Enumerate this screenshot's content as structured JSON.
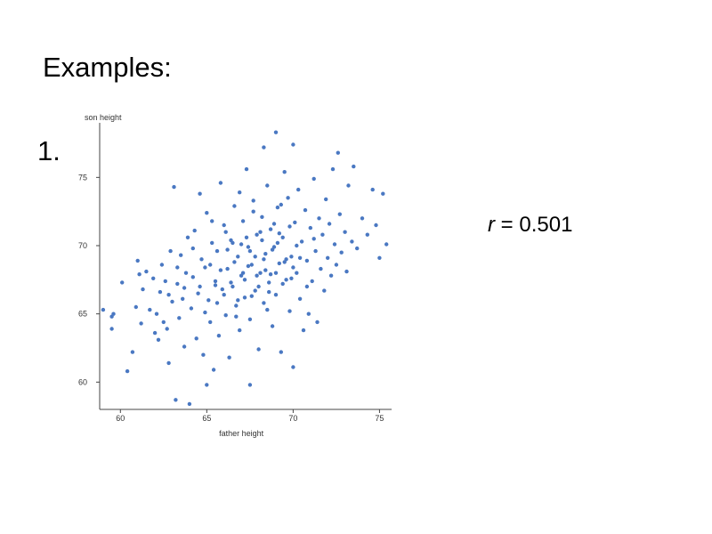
{
  "slide": {
    "title": "Examples:",
    "list_number": "1.",
    "r_symbol": "r",
    "r_rest": " = 0.501"
  },
  "colors": {
    "point": "#4a78c2",
    "axis": "#444444"
  },
  "chart_data": {
    "type": "scatter",
    "xlabel": "father height",
    "ylabel": "son height",
    "xlim": [
      58.8,
      75.7
    ],
    "ylim": [
      58.0,
      79.0
    ],
    "xticks": [
      60,
      65,
      70,
      75
    ],
    "yticks": [
      60,
      65,
      70,
      75
    ],
    "grid": false,
    "legend": "none",
    "points": [
      [
        59.0,
        65.3
      ],
      [
        59.5,
        64.8
      ],
      [
        59.6,
        65.0
      ],
      [
        59.5,
        63.9
      ],
      [
        60.1,
        67.3
      ],
      [
        60.4,
        60.8
      ],
      [
        60.7,
        62.2
      ],
      [
        60.9,
        65.5
      ],
      [
        61.0,
        68.9
      ],
      [
        61.1,
        67.9
      ],
      [
        61.2,
        64.3
      ],
      [
        61.3,
        66.8
      ],
      [
        61.5,
        68.1
      ],
      [
        61.7,
        65.3
      ],
      [
        61.9,
        67.6
      ],
      [
        62.0,
        63.6
      ],
      [
        62.1,
        65.0
      ],
      [
        62.2,
        63.1
      ],
      [
        62.3,
        66.6
      ],
      [
        62.4,
        68.6
      ],
      [
        62.5,
        64.4
      ],
      [
        62.6,
        67.4
      ],
      [
        62.7,
        63.9
      ],
      [
        62.8,
        61.4
      ],
      [
        62.9,
        69.6
      ],
      [
        63.0,
        65.9
      ],
      [
        63.1,
        74.3
      ],
      [
        63.2,
        58.7
      ],
      [
        63.3,
        67.2
      ],
      [
        63.4,
        64.7
      ],
      [
        63.5,
        69.3
      ],
      [
        63.6,
        66.1
      ],
      [
        63.7,
        62.6
      ],
      [
        63.8,
        68.0
      ],
      [
        63.9,
        70.6
      ],
      [
        64.0,
        58.4
      ],
      [
        64.1,
        65.4
      ],
      [
        64.2,
        67.7
      ],
      [
        64.3,
        71.1
      ],
      [
        64.4,
        63.2
      ],
      [
        64.5,
        66.5
      ],
      [
        64.6,
        73.8
      ],
      [
        64.7,
        69.0
      ],
      [
        64.8,
        62.0
      ],
      [
        64.9,
        68.4
      ],
      [
        65.0,
        59.8
      ],
      [
        65.0,
        72.4
      ],
      [
        65.1,
        66.0
      ],
      [
        65.2,
        64.4
      ],
      [
        65.3,
        70.2
      ],
      [
        65.4,
        60.9
      ],
      [
        65.5,
        67.4
      ],
      [
        65.6,
        69.6
      ],
      [
        65.7,
        63.4
      ],
      [
        65.8,
        74.6
      ],
      [
        65.9,
        66.8
      ],
      [
        66.0,
        71.5
      ],
      [
        66.1,
        64.9
      ],
      [
        66.2,
        68.3
      ],
      [
        66.3,
        61.8
      ],
      [
        66.4,
        70.4
      ],
      [
        66.5,
        67.0
      ],
      [
        66.6,
        72.9
      ],
      [
        66.7,
        65.6
      ],
      [
        66.8,
        69.2
      ],
      [
        66.9,
        63.8
      ],
      [
        67.0,
        67.8
      ],
      [
        67.1,
        71.8
      ],
      [
        67.2,
        66.2
      ],
      [
        67.3,
        75.6
      ],
      [
        67.4,
        69.9
      ],
      [
        67.5,
        59.8
      ],
      [
        67.5,
        64.6
      ],
      [
        67.6,
        68.6
      ],
      [
        67.7,
        73.3
      ],
      [
        67.8,
        66.7
      ],
      [
        67.9,
        70.8
      ],
      [
        68.0,
        62.4
      ],
      [
        68.1,
        68.0
      ],
      [
        68.2,
        72.1
      ],
      [
        68.3,
        65.8
      ],
      [
        68.3,
        77.2
      ],
      [
        68.4,
        69.4
      ],
      [
        68.5,
        74.4
      ],
      [
        68.6,
        67.3
      ],
      [
        68.7,
        71.2
      ],
      [
        68.8,
        64.1
      ],
      [
        68.9,
        69.9
      ],
      [
        69.0,
        78.3
      ],
      [
        69.0,
        66.4
      ],
      [
        69.1,
        72.8
      ],
      [
        69.2,
        68.7
      ],
      [
        69.3,
        62.2
      ],
      [
        69.4,
        70.6
      ],
      [
        69.5,
        75.4
      ],
      [
        69.6,
        67.5
      ],
      [
        69.7,
        73.5
      ],
      [
        69.8,
        65.2
      ],
      [
        69.9,
        69.2
      ],
      [
        70.0,
        61.1
      ],
      [
        70.0,
        77.4
      ],
      [
        70.1,
        71.7
      ],
      [
        70.2,
        68.0
      ],
      [
        70.3,
        74.1
      ],
      [
        70.4,
        66.1
      ],
      [
        70.5,
        70.3
      ],
      [
        70.6,
        63.8
      ],
      [
        70.7,
        72.6
      ],
      [
        70.8,
        68.9
      ],
      [
        70.9,
        65.0
      ],
      [
        71.0,
        71.3
      ],
      [
        71.1,
        67.4
      ],
      [
        71.2,
        74.9
      ],
      [
        71.3,
        69.6
      ],
      [
        71.4,
        64.4
      ],
      [
        71.5,
        72.0
      ],
      [
        71.6,
        68.3
      ],
      [
        71.7,
        70.8
      ],
      [
        71.8,
        66.7
      ],
      [
        71.9,
        73.4
      ],
      [
        72.0,
        69.1
      ],
      [
        72.1,
        71.6
      ],
      [
        72.2,
        67.8
      ],
      [
        72.3,
        75.6
      ],
      [
        72.4,
        70.1
      ],
      [
        72.5,
        68.6
      ],
      [
        72.6,
        76.8
      ],
      [
        72.7,
        72.3
      ],
      [
        72.8,
        69.5
      ],
      [
        73.0,
        71.0
      ],
      [
        73.1,
        68.1
      ],
      [
        73.2,
        74.4
      ],
      [
        73.4,
        70.3
      ],
      [
        73.5,
        75.8
      ],
      [
        73.7,
        69.8
      ],
      [
        74.0,
        72.0
      ],
      [
        74.3,
        70.8
      ],
      [
        74.6,
        74.1
      ],
      [
        74.8,
        71.5
      ],
      [
        75.0,
        69.1
      ],
      [
        75.2,
        73.8
      ],
      [
        75.4,
        70.1
      ],
      [
        65.5,
        67.1
      ],
      [
        65.8,
        68.2
      ],
      [
        66.0,
        66.4
      ],
      [
        66.2,
        69.7
      ],
      [
        66.4,
        67.3
      ],
      [
        66.6,
        68.8
      ],
      [
        66.8,
        66.0
      ],
      [
        67.0,
        70.1
      ],
      [
        67.2,
        67.5
      ],
      [
        67.4,
        68.5
      ],
      [
        67.6,
        66.3
      ],
      [
        67.8,
        69.2
      ],
      [
        68.0,
        67.0
      ],
      [
        68.2,
        70.4
      ],
      [
        68.4,
        68.2
      ],
      [
        68.6,
        66.6
      ],
      [
        68.8,
        69.7
      ],
      [
        69.0,
        68.0
      ],
      [
        69.2,
        70.9
      ],
      [
        69.4,
        67.2
      ],
      [
        69.6,
        69.0
      ],
      [
        69.8,
        71.4
      ],
      [
        70.0,
        68.4
      ],
      [
        70.2,
        70.0
      ],
      [
        67.1,
        68.0
      ],
      [
        67.5,
        69.6
      ],
      [
        67.9,
        67.8
      ],
      [
        68.3,
        69.0
      ],
      [
        68.7,
        67.9
      ],
      [
        69.1,
        70.2
      ],
      [
        69.5,
        68.8
      ],
      [
        69.9,
        67.6
      ],
      [
        68.1,
        71.0
      ],
      [
        67.3,
        70.6
      ],
      [
        66.5,
        70.2
      ],
      [
        68.9,
        71.6
      ],
      [
        65.2,
        68.6
      ],
      [
        65.6,
        65.8
      ],
      [
        66.1,
        71.0
      ],
      [
        66.7,
        64.8
      ],
      [
        67.7,
        72.5
      ],
      [
        68.5,
        65.3
      ],
      [
        69.3,
        73.0
      ],
      [
        70.4,
        69.1
      ],
      [
        70.8,
        67.0
      ],
      [
        71.2,
        70.5
      ],
      [
        64.6,
        67.0
      ],
      [
        64.2,
        69.8
      ],
      [
        63.7,
        66.9
      ],
      [
        63.3,
        68.4
      ],
      [
        62.8,
        66.4
      ],
      [
        64.9,
        65.1
      ],
      [
        65.3,
        71.8
      ],
      [
        66.9,
        73.9
      ]
    ]
  }
}
